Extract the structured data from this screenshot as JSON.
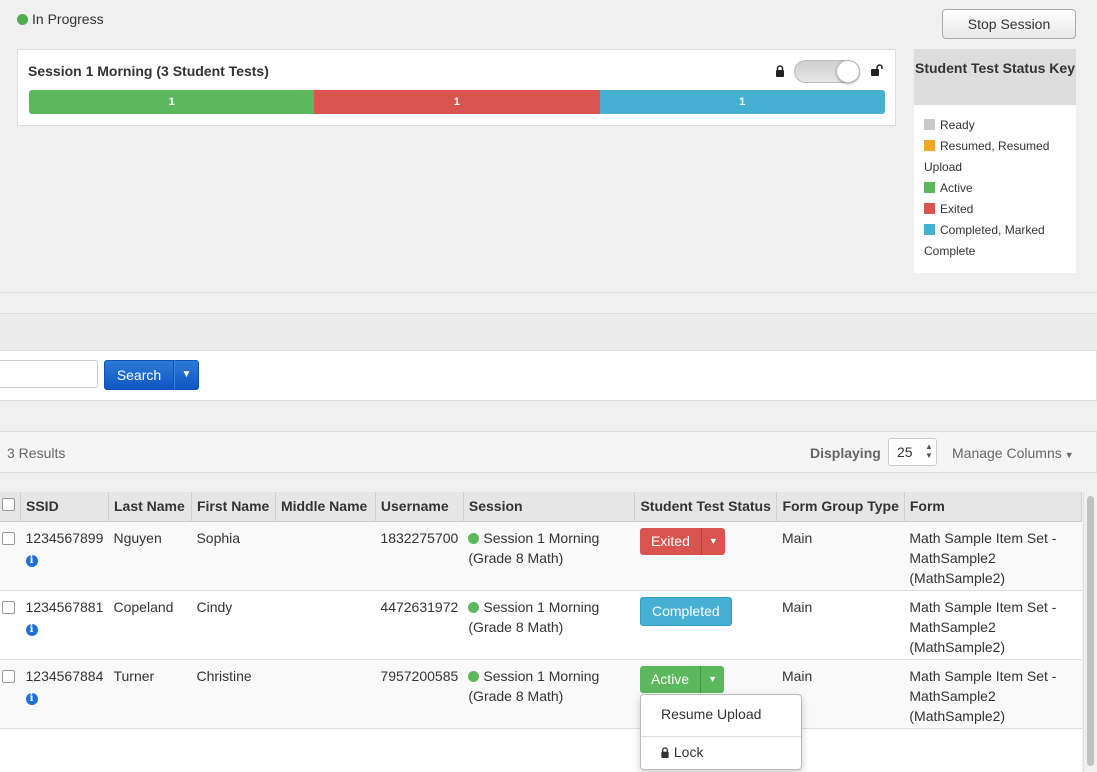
{
  "session_status": {
    "label": "In Progress",
    "color": "#4cae4c"
  },
  "stop_button": "Stop Session",
  "session": {
    "title": "Session 1 Morning (3 Student Tests)",
    "lock_icon": "lock-icon",
    "unlock_icon": "unlock-icon",
    "progress": [
      {
        "count": "1",
        "status": "Active",
        "color": "#5cb85c",
        "fraction": 0.3333
      },
      {
        "count": "1",
        "status": "Exited",
        "color": "#d9534f",
        "fraction": 0.3333
      },
      {
        "count": "1",
        "status": "Completed",
        "color": "#46b0d3",
        "fraction": 0.3333
      }
    ]
  },
  "status_key": {
    "title": "Student Test Status Key",
    "items": [
      {
        "label": "Ready",
        "color": "#c8c8c8"
      },
      {
        "label": "Resumed, Resumed Upload",
        "color": "#f5a623"
      },
      {
        "label": "Active",
        "color": "#5cb85c"
      },
      {
        "label": "Exited",
        "color": "#d9534f"
      },
      {
        "label": "Completed, Marked Complete",
        "color": "#46b0d3"
      }
    ]
  },
  "search": {
    "button": "Search",
    "input_value": ""
  },
  "results": {
    "count_label": "3 Results",
    "displaying_label": "Displaying",
    "page_size": "25",
    "manage_columns": "Manage Columns"
  },
  "table": {
    "columns": [
      "SSID",
      "Last Name",
      "First Name",
      "Middle Name",
      "Username",
      "Session",
      "Student Test Status",
      "Form Group Type",
      "Form"
    ],
    "rows": [
      {
        "ssid": "1234567899",
        "last": "Nguyen",
        "first": "Sophia",
        "middle": "",
        "username": "1832275700",
        "session": "Session 1 Morning",
        "session_grade": "(Grade 8 Math)",
        "status": "Exited",
        "form_group_type": "Main",
        "form_1": "Math Sample Item Set -",
        "form_2": "MathSample2",
        "form_3": "(MathSample2)"
      },
      {
        "ssid": "1234567881",
        "last": "Copeland",
        "first": "Cindy",
        "middle": "",
        "username": "4472631972",
        "session": "Session 1 Morning",
        "session_grade": "(Grade 8 Math)",
        "status": "Completed",
        "form_group_type": "Main",
        "form_1": "Math Sample Item Set -",
        "form_2": "MathSample2",
        "form_3": "(MathSample2)"
      },
      {
        "ssid": "1234567884",
        "last": "Turner",
        "first": "Christine",
        "middle": "",
        "username": "7957200585",
        "session": "Session 1 Morning",
        "session_grade": "(Grade 8 Math)",
        "status": "Active",
        "form_group_type": "Main",
        "form_1": "Math Sample Item Set -",
        "form_2": "MathSample2",
        "form_3": "(MathSample2)"
      }
    ]
  },
  "status_menu": {
    "resume_upload": "Resume Upload",
    "lock": "Lock"
  }
}
